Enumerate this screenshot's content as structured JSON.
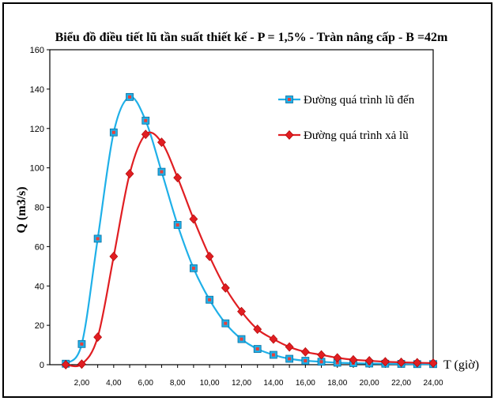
{
  "chart_data": {
    "type": "line",
    "title": "Biểu đồ điều tiết lũ tần suất thiết kế - P = 1,5% - Tràn nâng cấp - B =42m",
    "xlabel": "T (giờ)",
    "ylabel": "Q (m3/s)",
    "xlim": [
      0,
      24
    ],
    "ylim": [
      0,
      160
    ],
    "x_ticks": [
      2,
      4,
      6,
      8,
      10,
      12,
      14,
      16,
      18,
      20,
      22,
      24
    ],
    "x_tick_labels": [
      "2,00",
      "4,00",
      "6,00",
      "8,00",
      "10,00",
      "12,00",
      "14,00",
      "16,00",
      "18,00",
      "20,00",
      "22,00",
      "24,00"
    ],
    "y_ticks": [
      0,
      20,
      40,
      60,
      80,
      100,
      120,
      140,
      160
    ],
    "y_tick_labels": [
      "0",
      "20",
      "40",
      "60",
      "80",
      "100",
      "120",
      "140",
      "160"
    ],
    "grid": "dashed",
    "legend_position": "top-right",
    "series": [
      {
        "name": "Đường quá trình lũ đến",
        "color": "#1fb0e8",
        "marker": "square",
        "x": [
          1,
          2,
          3,
          4,
          5,
          6,
          7,
          8,
          9,
          10,
          11,
          12,
          13,
          14,
          15,
          16,
          17,
          18,
          19,
          20,
          21,
          22,
          23,
          24
        ],
        "values": [
          0.5,
          10.5,
          64,
          118,
          136,
          124,
          98,
          71,
          49,
          33,
          21,
          13,
          8,
          5,
          3,
          2,
          1.5,
          1,
          0.8,
          0.6,
          0.5,
          0.4,
          0.3,
          0.3
        ]
      },
      {
        "name": "Đường quá trình xả lũ",
        "color": "#e01e22",
        "marker": "diamond",
        "x": [
          1,
          2,
          3,
          4,
          5,
          6,
          7,
          8,
          9,
          10,
          11,
          12,
          13,
          14,
          15,
          16,
          17,
          18,
          19,
          20,
          21,
          22,
          23,
          24
        ],
        "values": [
          0,
          0.3,
          14,
          55,
          97,
          117,
          113,
          95,
          74,
          55,
          39,
          27,
          18,
          13,
          9,
          6.5,
          5,
          3.5,
          2.5,
          2,
          1.5,
          1.2,
          1,
          0.8
        ]
      }
    ]
  }
}
